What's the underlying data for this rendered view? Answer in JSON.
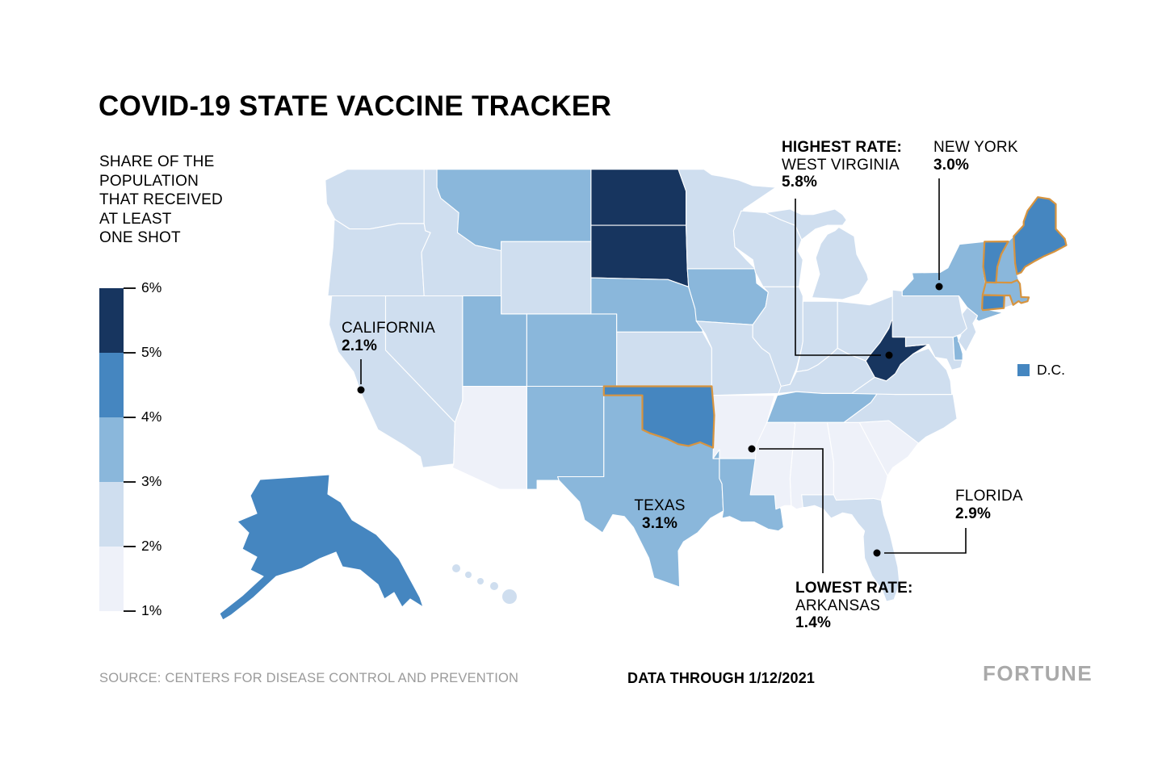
{
  "title": "COVID-19 STATE VACCINE TRACKER",
  "legend": {
    "label_lines": [
      "SHARE OF THE",
      "POPULATION",
      "THAT RECEIVED",
      "AT LEAST",
      "ONE SHOT"
    ],
    "ticks": [
      "6%",
      "5%",
      "4%",
      "3%",
      "2%",
      "1%"
    ]
  },
  "dc_legend": {
    "label": "D.C."
  },
  "annotations": {
    "highest": {
      "heading": "HIGHEST RATE:",
      "state": "WEST VIRGINIA",
      "value": "5.8%"
    },
    "new_york": {
      "state": "NEW YORK",
      "value": "3.0%"
    },
    "california": {
      "state": "CALIFORNIA",
      "value": "2.1%"
    },
    "texas": {
      "state": "TEXAS",
      "value": "3.1%"
    },
    "florida": {
      "state": "FLORIDA",
      "value": "2.9%"
    },
    "lowest": {
      "heading": "LOWEST RATE:",
      "state": "ARKANSAS",
      "value": "1.4%"
    }
  },
  "footer": {
    "source": "SOURCE: CENTERS FOR DISEASE CONTROL AND PREVENTION",
    "data_through": "DATA THROUGH 1/12/2021",
    "brand": "FORTUNE"
  },
  "chart_data": {
    "type": "choropleth",
    "title": "COVID-19 STATE VACCINE TRACKER",
    "metric": "Share of the population that received at least one shot",
    "data_through": "1/12/2021",
    "source": "Centers for Disease Control and Prevention",
    "scale": {
      "ticks_percent": [
        6,
        5,
        4,
        3,
        2,
        1
      ],
      "bins": [
        {
          "key": "1-2",
          "range": "1-2%",
          "color": "#eef1f9"
        },
        {
          "key": "2-3",
          "range": "2-3%",
          "color": "#cfdeef"
        },
        {
          "key": "3-4",
          "range": "3-4%",
          "color": "#8ab7db"
        },
        {
          "key": "4-5",
          "range": "4-5%",
          "color": "#4586c0"
        },
        {
          "key": "5-6",
          "range": "5-6%",
          "color": "#17355f"
        }
      ]
    },
    "labeled_values_percent": {
      "WEST VIRGINIA": 5.8,
      "NEW YORK": 3.0,
      "CALIFORNIA": 2.1,
      "TEXAS": 3.1,
      "FLORIDA": 2.9,
      "ARKANSAS": 1.4
    },
    "highest": {
      "state": "WEST VIRGINIA",
      "value_percent": 5.8
    },
    "lowest": {
      "state": "ARKANSAS",
      "value_percent": 1.4
    },
    "state_bins": {
      "WA": "2-3",
      "OR": "2-3",
      "CA": "2-3",
      "NV": "2-3",
      "ID": "2-3",
      "MT": "3-4",
      "WY": "2-3",
      "UT": "3-4",
      "CO": "3-4",
      "AZ": "1-2",
      "NM": "3-4",
      "ND": "5-6",
      "SD": "5-6",
      "NE": "3-4",
      "KS": "2-3",
      "OK": "4-5",
      "TX": "3-4",
      "MN": "2-3",
      "IA": "3-4",
      "MO": "2-3",
      "AR": "1-2",
      "LA": "3-4",
      "WI": "2-3",
      "IL": "2-3",
      "MI": "2-3",
      "IN": "2-3",
      "OH": "2-3",
      "KY": "2-3",
      "TN": "3-4",
      "MS": "1-2",
      "AL": "1-2",
      "GA": "1-2",
      "FL": "2-3",
      "SC": "1-2",
      "NC": "2-3",
      "VA": "2-3",
      "WV": "5-6",
      "MD": "2-3",
      "DE": "3-4",
      "NJ": "2-3",
      "PA": "2-3",
      "NY": "3-4",
      "CT": "4-5",
      "RI": "2-3",
      "MA": "3-4",
      "VT": "4-5",
      "NH": "3-4",
      "ME": "4-5",
      "AK": "4-5",
      "HI": "2-3",
      "DC": "4-5"
    },
    "highlighted_outline_states": [
      "OK",
      "CT",
      "MA",
      "VT",
      "ME"
    ],
    "highlight_outline_color": "#d7943f"
  }
}
